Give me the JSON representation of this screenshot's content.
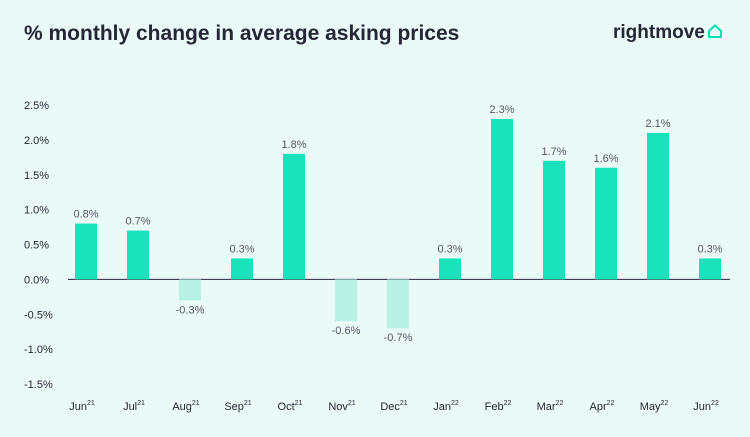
{
  "title": "% monthly change in average asking prices",
  "brand": {
    "name": "rightmove",
    "icon": "house-icon",
    "color": "#00deb6"
  },
  "colors": {
    "positive": "#19e2bb",
    "negative": "#b6f1e4",
    "background": "#eafaf6",
    "text": "#262637"
  },
  "chart_data": {
    "type": "bar",
    "title": "% monthly change in average asking prices",
    "categories": [
      "Jun",
      "Jul",
      "Aug",
      "Sep",
      "Oct",
      "Nov",
      "Dec",
      "Jan",
      "Feb",
      "Mar",
      "Apr",
      "May",
      "Jun"
    ],
    "category_years": [
      "21",
      "21",
      "21",
      "21",
      "21",
      "21",
      "21",
      "22",
      "22",
      "22",
      "22",
      "22",
      "22"
    ],
    "values": [
      0.8,
      0.7,
      -0.3,
      0.3,
      1.8,
      -0.6,
      -0.7,
      0.3,
      2.3,
      1.7,
      1.6,
      2.1,
      0.3
    ],
    "value_labels": [
      "0.8%",
      "0.7%",
      "-0.3%",
      "0.3%",
      "1.8%",
      "-0.6%",
      "-0.7%",
      "0.3%",
      "2.3%",
      "1.7%",
      "1.6%",
      "2.1%",
      "0.3%"
    ],
    "y_ticks": [
      2.5,
      2.0,
      1.5,
      1.0,
      0.5,
      0.0,
      -0.5,
      -1.0,
      -1.5
    ],
    "y_tick_labels": [
      "2.5%",
      "2.0%",
      "1.5%",
      "1.0%",
      "0.5%",
      "0.0%",
      "-0.5%",
      "-1.0%",
      "-1.5%"
    ],
    "ylim": [
      -1.5,
      2.5
    ],
    "xlabel": "",
    "ylabel": "",
    "grid": false,
    "legend": "none"
  }
}
